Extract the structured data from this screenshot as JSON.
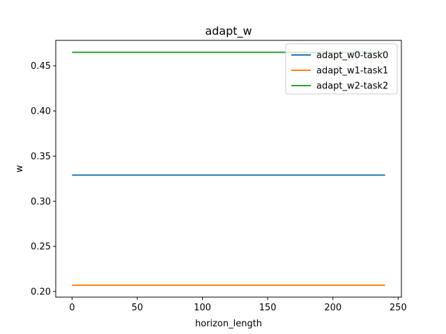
{
  "chart_data": {
    "type": "line",
    "title": "adapt_w",
    "xlabel": "horizon_length",
    "ylabel": "w",
    "xlim": [
      -12.5,
      252.5
    ],
    "ylim": [
      0.1938,
      0.4783
    ],
    "xticks": [
      0,
      50,
      100,
      150,
      200,
      250
    ],
    "yticks": [
      0.2,
      0.25,
      0.3,
      0.35,
      0.4,
      0.45
    ],
    "ytick_labels": [
      "0.20",
      "0.25",
      "0.30",
      "0.35",
      "0.40",
      "0.45"
    ],
    "grid": false,
    "legend_position": "top-right",
    "series": [
      {
        "name": "adapt_w0-task0",
        "color": "#1f77b4",
        "x": [
          0,
          240
        ],
        "y": [
          0.329,
          0.329
        ]
      },
      {
        "name": "adapt_w1-task1",
        "color": "#ff7f0e",
        "x": [
          0,
          240
        ],
        "y": [
          0.207,
          0.207
        ]
      },
      {
        "name": "adapt_w2-task2",
        "color": "#2ca02c",
        "x": [
          0,
          240
        ],
        "y": [
          0.465,
          0.465
        ]
      }
    ]
  }
}
